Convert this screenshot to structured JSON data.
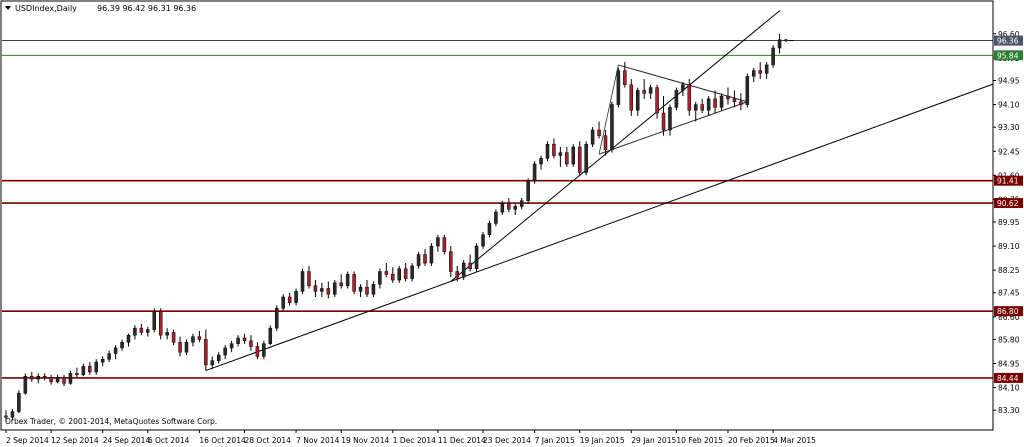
{
  "header": {
    "symbol_label": "USDIndex,Daily",
    "ohlc_text": "96.39 96.42 96.31 96.36"
  },
  "footer": {
    "copyright": "Orbex Trader, © 2001-2014, MetaQuotes Software Corp."
  },
  "colors": {
    "bull_candle": "#2b2b2b",
    "bear_candle": "#b0202a",
    "resistance_line": "#7a0000",
    "green_level": "#2e7d32",
    "grid_line": "#000000"
  },
  "chart_data": {
    "type": "candlestick",
    "ylim": [
      82.6,
      97.3
    ],
    "y_ticks": [
      "96.60",
      "95.75",
      "94.95",
      "94.10",
      "93.30",
      "92.45",
      "91.60",
      "90.75",
      "89.95",
      "89.10",
      "88.25",
      "87.45",
      "86.60",
      "85.80",
      "84.95",
      "84.10",
      "83.30"
    ],
    "x_ticks": [
      "2 Sep 2014",
      "12 Sep 2014",
      "24 Sep 2014",
      "6 Oct 2014",
      "16 Oct 2014",
      "28 Oct 2014",
      "7 Nov 2014",
      "19 Nov 2014",
      "1 Dec 2014",
      "11 Dec 2014",
      "23 Dec 2014",
      "7 Jan 2015",
      "19 Jan 2015",
      "29 Jan 2015",
      "10 Feb 2015",
      "20 Feb 2015",
      "4 Mar 2015"
    ],
    "price_levels": [
      {
        "label": "96.36",
        "value": 96.36,
        "style": "current"
      },
      {
        "label": "95.84",
        "value": 95.84,
        "style": "green"
      },
      {
        "label": "91.41",
        "value": 91.41,
        "style": "red"
      },
      {
        "label": "90.62",
        "value": 90.62,
        "style": "red"
      },
      {
        "label": "86.80",
        "value": 86.8,
        "style": "red"
      },
      {
        "label": "84.44",
        "value": 84.44,
        "style": "red"
      }
    ],
    "candles": [
      [
        83.1,
        83.3,
        82.9,
        83.05
      ],
      [
        83.05,
        83.35,
        82.95,
        83.25
      ],
      [
        83.25,
        84.0,
        83.2,
        83.9
      ],
      [
        83.9,
        84.6,
        83.85,
        84.5
      ],
      [
        84.5,
        84.65,
        84.3,
        84.4
      ],
      [
        84.4,
        84.6,
        84.25,
        84.5
      ],
      [
        84.5,
        84.6,
        84.35,
        84.45
      ],
      [
        84.45,
        84.55,
        84.2,
        84.3
      ],
      [
        84.3,
        84.55,
        84.25,
        84.45
      ],
      [
        84.45,
        84.55,
        84.15,
        84.25
      ],
      [
        84.25,
        84.7,
        84.2,
        84.6
      ],
      [
        84.6,
        84.8,
        84.45,
        84.55
      ],
      [
        84.55,
        84.95,
        84.5,
        84.85
      ],
      [
        84.85,
        85.0,
        84.55,
        84.65
      ],
      [
        84.65,
        85.1,
        84.55,
        85.0
      ],
      [
        85.0,
        85.2,
        84.85,
        85.1
      ],
      [
        85.1,
        85.4,
        85.0,
        85.3
      ],
      [
        85.3,
        85.6,
        85.1,
        85.5
      ],
      [
        85.5,
        85.8,
        85.4,
        85.7
      ],
      [
        85.7,
        86.0,
        85.55,
        85.95
      ],
      [
        85.95,
        86.3,
        85.8,
        86.2
      ],
      [
        86.2,
        86.35,
        85.95,
        86.05
      ],
      [
        86.05,
        86.25,
        85.9,
        86.15
      ],
      [
        86.15,
        86.9,
        86.05,
        86.8
      ],
      [
        86.8,
        86.9,
        85.8,
        85.95
      ],
      [
        85.95,
        86.2,
        85.8,
        86.05
      ],
      [
        86.05,
        86.15,
        85.6,
        85.7
      ],
      [
        85.7,
        85.9,
        85.2,
        85.35
      ],
      [
        85.35,
        85.8,
        85.25,
        85.7
      ],
      [
        85.7,
        86.0,
        85.55,
        85.9
      ],
      [
        85.9,
        86.1,
        85.7,
        85.8
      ],
      [
        85.8,
        86.15,
        84.7,
        84.9
      ],
      [
        84.9,
        85.2,
        84.75,
        85.05
      ],
      [
        85.05,
        85.35,
        84.95,
        85.25
      ],
      [
        85.25,
        85.6,
        85.1,
        85.5
      ],
      [
        85.5,
        85.75,
        85.35,
        85.65
      ],
      [
        85.65,
        85.95,
        85.55,
        85.85
      ],
      [
        85.85,
        86.0,
        85.65,
        85.75
      ],
      [
        85.75,
        85.95,
        85.4,
        85.55
      ],
      [
        85.55,
        85.7,
        85.1,
        85.2
      ],
      [
        85.2,
        85.75,
        85.1,
        85.65
      ],
      [
        85.65,
        86.3,
        85.6,
        86.2
      ],
      [
        86.2,
        87.0,
        86.1,
        86.9
      ],
      [
        86.9,
        87.4,
        86.8,
        87.3
      ],
      [
        87.3,
        87.45,
        87.0,
        87.1
      ],
      [
        87.1,
        87.6,
        87.0,
        87.5
      ],
      [
        87.5,
        88.3,
        87.4,
        88.2
      ],
      [
        88.2,
        88.4,
        87.6,
        87.7
      ],
      [
        87.7,
        87.9,
        87.3,
        87.5
      ],
      [
        87.5,
        87.8,
        87.3,
        87.6
      ],
      [
        87.6,
        87.85,
        87.25,
        87.4
      ],
      [
        87.4,
        87.9,
        87.3,
        87.8
      ],
      [
        87.8,
        88.1,
        87.6,
        87.7
      ],
      [
        87.7,
        88.2,
        87.6,
        88.1
      ],
      [
        88.1,
        88.2,
        87.4,
        87.5
      ],
      [
        87.5,
        87.75,
        87.3,
        87.65
      ],
      [
        87.65,
        87.9,
        87.3,
        87.4
      ],
      [
        87.4,
        87.85,
        87.3,
        87.75
      ],
      [
        87.75,
        88.3,
        87.6,
        88.2
      ],
      [
        88.2,
        88.5,
        88.0,
        88.1
      ],
      [
        88.1,
        88.35,
        87.8,
        87.9
      ],
      [
        87.9,
        88.4,
        87.8,
        88.3
      ],
      [
        88.3,
        88.5,
        87.85,
        87.95
      ],
      [
        87.95,
        88.5,
        87.85,
        88.4
      ],
      [
        88.4,
        88.9,
        88.3,
        88.8
      ],
      [
        88.8,
        89.0,
        88.4,
        88.5
      ],
      [
        88.5,
        89.2,
        88.4,
        89.1
      ],
      [
        89.1,
        89.5,
        88.9,
        89.4
      ],
      [
        89.4,
        89.5,
        88.8,
        88.9
      ],
      [
        88.9,
        89.1,
        88.0,
        88.2
      ],
      [
        88.2,
        88.4,
        87.85,
        88.0
      ],
      [
        88.0,
        88.6,
        87.9,
        88.5
      ],
      [
        88.5,
        88.8,
        88.2,
        88.3
      ],
      [
        88.3,
        89.2,
        88.2,
        89.1
      ],
      [
        89.1,
        89.6,
        89.0,
        89.5
      ],
      [
        89.5,
        90.0,
        89.4,
        89.9
      ],
      [
        89.9,
        90.4,
        89.8,
        90.3
      ],
      [
        90.3,
        90.7,
        90.2,
        90.6
      ],
      [
        90.6,
        90.8,
        90.3,
        90.4
      ],
      [
        90.4,
        90.6,
        90.2,
        90.5
      ],
      [
        90.5,
        90.8,
        90.4,
        90.7
      ],
      [
        90.7,
        91.5,
        90.6,
        91.4
      ],
      [
        91.4,
        92.1,
        91.3,
        92.0
      ],
      [
        92.0,
        92.3,
        91.8,
        92.2
      ],
      [
        92.2,
        92.8,
        92.1,
        92.7
      ],
      [
        92.7,
        92.9,
        92.2,
        92.3
      ],
      [
        92.3,
        92.6,
        91.9,
        92.4
      ],
      [
        92.4,
        92.6,
        91.9,
        92.0
      ],
      [
        92.0,
        92.7,
        91.9,
        92.6
      ],
      [
        92.6,
        92.8,
        91.6,
        91.7
      ],
      [
        91.7,
        92.8,
        91.6,
        92.7
      ],
      [
        92.7,
        93.3,
        92.6,
        93.2
      ],
      [
        93.2,
        93.5,
        92.9,
        93.0
      ],
      [
        93.0,
        93.2,
        92.3,
        92.5
      ],
      [
        92.5,
        94.2,
        92.4,
        94.1
      ],
      [
        94.1,
        95.4,
        94.0,
        95.3
      ],
      [
        95.3,
        95.6,
        94.7,
        94.8
      ],
      [
        94.8,
        95.0,
        93.7,
        93.9
      ],
      [
        93.9,
        94.7,
        93.7,
        94.6
      ],
      [
        94.6,
        95.0,
        94.3,
        94.5
      ],
      [
        94.5,
        94.8,
        94.3,
        94.7
      ],
      [
        94.7,
        94.8,
        93.6,
        93.8
      ],
      [
        93.8,
        94.4,
        93.0,
        93.2
      ],
      [
        93.2,
        94.1,
        93.0,
        94.0
      ],
      [
        94.0,
        94.7,
        93.9,
        94.6
      ],
      [
        94.6,
        94.9,
        94.4,
        94.8
      ],
      [
        94.8,
        95.0,
        93.7,
        93.9
      ],
      [
        93.9,
        94.2,
        93.5,
        94.1
      ],
      [
        94.1,
        94.3,
        93.8,
        93.9
      ],
      [
        93.9,
        94.4,
        93.7,
        94.3
      ],
      [
        94.3,
        94.6,
        93.8,
        94.0
      ],
      [
        94.0,
        94.5,
        93.9,
        94.4
      ],
      [
        94.4,
        94.7,
        94.1,
        94.3
      ],
      [
        94.3,
        94.6,
        94.0,
        94.2
      ],
      [
        94.2,
        94.5,
        93.9,
        94.1
      ],
      [
        94.1,
        95.2,
        94.0,
        95.1
      ],
      [
        95.1,
        95.4,
        94.9,
        95.3
      ],
      [
        95.3,
        95.6,
        95.0,
        95.2
      ],
      [
        95.2,
        95.6,
        95.0,
        95.5
      ],
      [
        95.5,
        96.2,
        95.4,
        96.1
      ],
      [
        96.1,
        96.6,
        95.9,
        96.39
      ],
      [
        96.39,
        96.42,
        96.31,
        96.36
      ]
    ]
  }
}
